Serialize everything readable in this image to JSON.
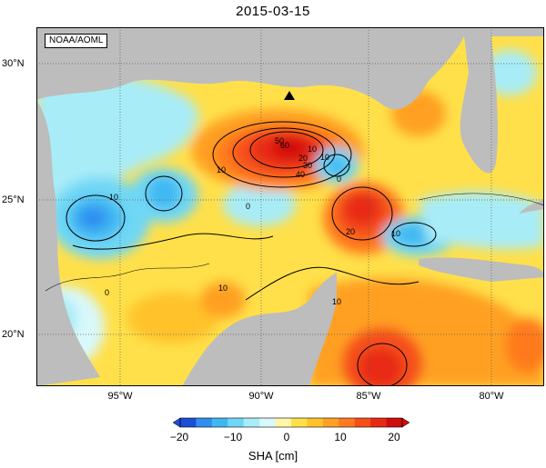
{
  "title": "2015-03-15",
  "credit": "NOAA/AOML",
  "lat_labels": [
    "30°N",
    "25°N",
    "20°N"
  ],
  "lon_labels": [
    "95°W",
    "90°W",
    "85°W",
    "80°W"
  ],
  "colorbar": {
    "label": "SHA [cm]",
    "ticks": [
      "−20",
      "−10",
      "0",
      "10",
      "20"
    ],
    "colors": [
      "#1a4fd6",
      "#2f8ef0",
      "#3fb8f2",
      "#6fd7f5",
      "#a8ecf7",
      "#d9f8fb",
      "#fff6a8",
      "#ffe04a",
      "#ffc22a",
      "#ffa024",
      "#ff7a1e",
      "#f5501a",
      "#e82a14",
      "#d10c0c"
    ]
  },
  "contour_labels": [
    "60",
    "50",
    "40",
    "30",
    "20",
    "10",
    "0",
    "10",
    "10",
    "10",
    "10",
    "20",
    "10",
    "0",
    "0",
    "10"
  ],
  "land_color": "#bdbdbd",
  "marker": "triangle-marker"
}
